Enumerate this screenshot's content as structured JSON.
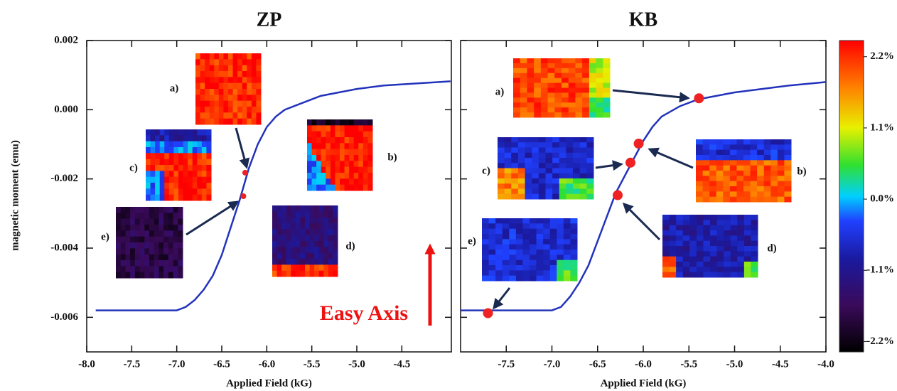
{
  "chart_data": [
    {
      "type": "line",
      "title": "ZP",
      "x_label": "Applied Field (kG)",
      "y_label": "magnetic moment (emu)",
      "xlim": [
        -8.0,
        -3.95
      ],
      "ylim": [
        -0.007,
        0.002
      ],
      "xticks": [
        {
          "value": -8.0,
          "label": "-8.0"
        },
        -7.5,
        {
          "value": -7.0,
          "label": "-7.0"
        },
        -6.5,
        {
          "value": -6.0,
          "label": "-6.0"
        },
        -5.5,
        {
          "value": -5.0,
          "label": "-5.0"
        },
        -4.5
      ],
      "yticks": [
        0.002,
        {
          "value": 0,
          "label": "0.000"
        },
        -0.002,
        -0.004,
        -0.006
      ],
      "x": [
        -7.9,
        -7.5,
        -7.0,
        -6.9,
        -6.8,
        -6.7,
        -6.6,
        -6.5,
        -6.4,
        -6.3,
        -6.2,
        -6.1,
        -6.0,
        -5.9,
        -5.8,
        -5.6,
        -5.4,
        -5.2,
        -5.0,
        -4.7,
        -4.4,
        -3.96
      ],
      "values": [
        -0.0058,
        -0.0058,
        -0.0058,
        -0.0057,
        -0.0055,
        -0.0052,
        -0.0048,
        -0.0042,
        -0.0034,
        -0.0026,
        -0.0017,
        -0.001,
        -0.0005,
        -0.0002,
        0.0,
        0.0002,
        0.0004,
        0.0005,
        0.0006,
        0.0007,
        0.00075,
        0.00082
      ],
      "color": "#2233bb",
      "points": {
        "x": [
          -6.24,
          -6.26
        ],
        "values": [
          -0.00182,
          -0.0025
        ],
        "color": "#ee2222"
      },
      "annotations": [
        "a)",
        "b)",
        "c)",
        "d)",
        "e)"
      ],
      "easy_axis": "Easy Axis"
    },
    {
      "type": "line",
      "title": "KB",
      "x_label": "Applied Field (kG)",
      "xlim": [
        -8.0,
        -4.0
      ],
      "ylim": [
        -0.007,
        0.002
      ],
      "xticks": [
        -7.5,
        {
          "value": -7.0,
          "label": "-7.0"
        },
        -6.5,
        {
          "value": -6.0,
          "label": "-6.0"
        },
        -5.5,
        {
          "value": -5.0,
          "label": "-5.0"
        },
        -4.5,
        {
          "value": -4.0,
          "label": "-4.0"
        }
      ],
      "yticks": [
        0.002,
        0,
        -0.002,
        -0.004,
        -0.006
      ],
      "x": [
        -8.0,
        -7.7,
        -7.0,
        -6.9,
        -6.8,
        -6.7,
        -6.6,
        -6.5,
        -6.4,
        -6.3,
        -6.2,
        -6.1,
        -6.0,
        -5.9,
        -5.8,
        -5.6,
        -5.4,
        -5.2,
        -5.0,
        -4.7,
        -4.4,
        -4.0
      ],
      "values": [
        -0.0058,
        -0.0058,
        -0.0058,
        -0.0057,
        -0.0054,
        -0.005,
        -0.0045,
        -0.0038,
        -0.0031,
        -0.0024,
        -0.0019,
        -0.0014,
        -0.0009,
        -0.0005,
        -0.0002,
        0.0001,
        0.0003,
        0.0004,
        0.0005,
        0.0006,
        0.0007,
        0.0008
      ],
      "color": "#2233bb",
      "points": {
        "x": [
          -5.39,
          -6.05,
          -6.14,
          -6.28,
          -7.7
        ],
        "values": [
          0.00033,
          -0.00098,
          -0.00153,
          -0.00247,
          -0.00588
        ],
        "color": "#ee2222"
      },
      "annotations": [
        "a)",
        "b)",
        "c)",
        "d)",
        "e)"
      ],
      "colorbar": {
        "lim": [
          -2.36,
          2.45
        ],
        "ticks": [
          {
            "value": 2.2,
            "label": "2.2%"
          },
          {
            "value": 1.1,
            "label": "1.1%"
          },
          {
            "value": 0.0,
            "label": "0.0%"
          },
          {
            "value": -1.1,
            "label": "-1.1%"
          },
          {
            "value": -2.2,
            "label": "-2.2%"
          }
        ]
      }
    }
  ]
}
